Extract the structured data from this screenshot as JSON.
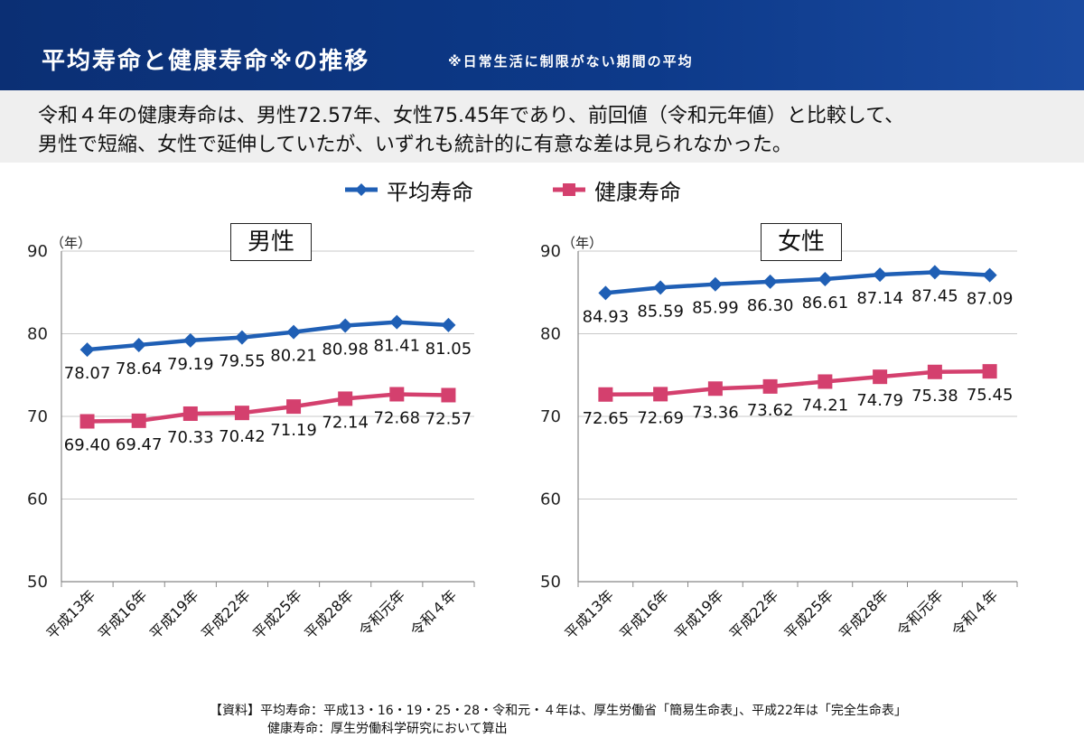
{
  "header": {
    "title": "平均寿命と健康寿命※の推移",
    "note": "※日常生活に制限がない期間の平均"
  },
  "summary": {
    "line1": "令和４年の健康寿命は、男性72.57年、女性75.45年であり、前回値（令和元年値）と比較して、",
    "line2": "男性で短縮、女性で延伸していたが、いずれも統計的に有意な差は見られなかった。"
  },
  "legend": {
    "average": "平均寿命",
    "healthy": "健康寿命"
  },
  "colors": {
    "average": "#1f5fb5",
    "healthy": "#d4406e",
    "header_bg": "#0d3a8a",
    "grid": "#c8c8c8"
  },
  "chart_data": [
    {
      "type": "line",
      "title": "男性",
      "ylabel": "（年）",
      "ylim": [
        50,
        90
      ],
      "yticks": [
        50,
        60,
        70,
        80,
        90
      ],
      "grid": true,
      "categories": [
        "平成13年",
        "平成16年",
        "平成19年",
        "平成22年",
        "平成25年",
        "平成28年",
        "令和元年",
        "令和４年"
      ],
      "series": [
        {
          "name": "平均寿命",
          "values": [
            78.07,
            78.64,
            79.19,
            79.55,
            80.21,
            80.98,
            81.41,
            81.05
          ],
          "labels": [
            "78.07",
            "78.64",
            "79.19",
            "79.55",
            "80.21",
            "80.98",
            "81.41",
            "81.05"
          ]
        },
        {
          "name": "健康寿命",
          "values": [
            69.4,
            69.47,
            70.33,
            70.42,
            71.19,
            72.14,
            72.68,
            72.57
          ],
          "labels": [
            "69.40",
            "69.47",
            "70.33",
            "70.42",
            "71.19",
            "72.14",
            "72.68",
            "72.57"
          ]
        }
      ]
    },
    {
      "type": "line",
      "title": "女性",
      "ylabel": "（年）",
      "ylim": [
        50,
        90
      ],
      "yticks": [
        50,
        60,
        70,
        80,
        90
      ],
      "grid": true,
      "categories": [
        "平成13年",
        "平成16年",
        "平成19年",
        "平成22年",
        "平成25年",
        "平成28年",
        "令和元年",
        "令和４年"
      ],
      "series": [
        {
          "name": "平均寿命",
          "values": [
            84.93,
            85.59,
            85.99,
            86.3,
            86.61,
            87.14,
            87.45,
            87.09
          ],
          "labels": [
            "84.93",
            "85.59",
            "85.99",
            "86.30",
            "86.61",
            "87.14",
            "87.45",
            "87.09"
          ]
        },
        {
          "name": "健康寿命",
          "values": [
            72.65,
            72.69,
            73.36,
            73.62,
            74.21,
            74.79,
            75.38,
            75.45
          ],
          "labels": [
            "72.65",
            "72.69",
            "73.36",
            "73.62",
            "74.21",
            "74.79",
            "75.38",
            "75.45"
          ]
        }
      ]
    }
  ],
  "source": {
    "line1": "【資料】平均寿命：平成13・16・19・25・28・令和元・４年は、厚生労働省「簡易生命表」、平成22年は「完全生命表」",
    "line2": "健康寿命：厚生労働科学研究において算出"
  }
}
